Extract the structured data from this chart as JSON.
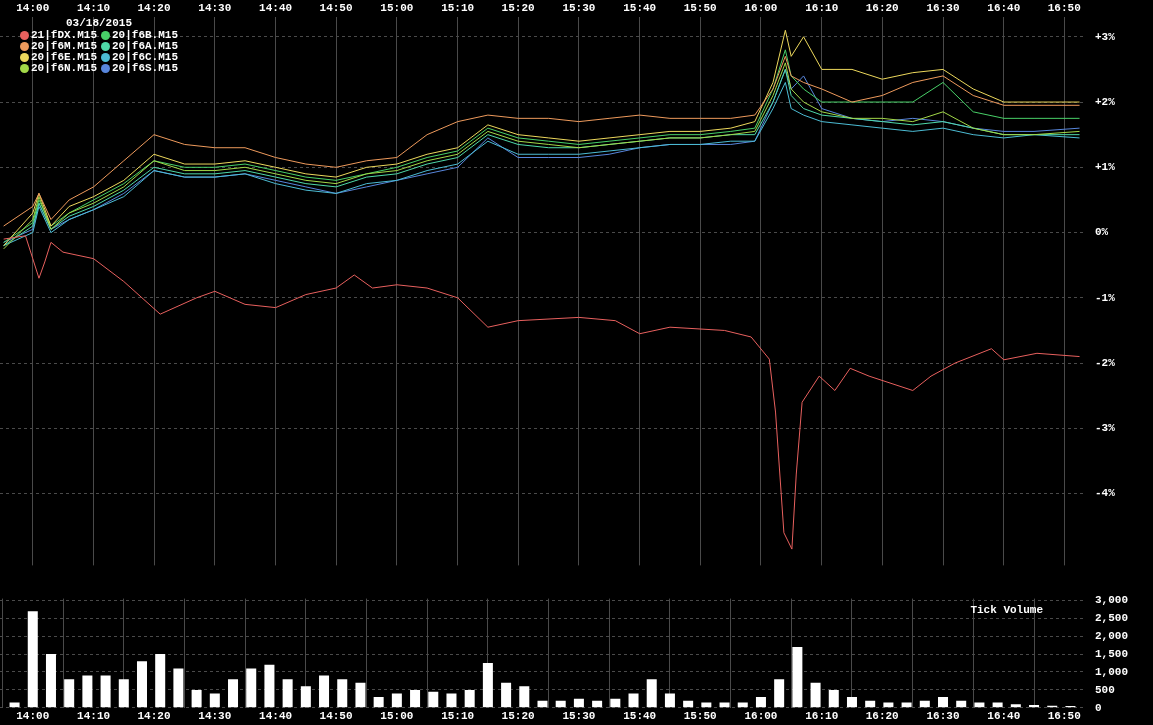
{
  "chart_data": [
    {
      "type": "line",
      "legend_title": "03/18/2015",
      "legend": "top left",
      "grid": true,
      "marker": "none",
      "xlim": [
        13.91,
        16.89
      ],
      "xticks": [
        {
          "value": 14,
          "label": "14:00"
        },
        {
          "value": 14.167,
          "label": "14:10"
        },
        {
          "value": 14.333,
          "label": "14:20"
        },
        {
          "value": 14.5,
          "label": "14:30"
        },
        {
          "value": 14.667,
          "label": "14:40"
        },
        {
          "value": 14.833,
          "label": "14:50"
        },
        {
          "value": 15,
          "label": "15:00"
        },
        {
          "value": 15.167,
          "label": "15:10"
        },
        {
          "value": 15.333,
          "label": "15:20"
        },
        {
          "value": 15.5,
          "label": "15:30"
        },
        {
          "value": 15.667,
          "label": "15:40"
        },
        {
          "value": 15.833,
          "label": "15:50"
        },
        {
          "value": 16,
          "label": "16:00"
        },
        {
          "value": 16.167,
          "label": "16:10"
        },
        {
          "value": 16.333,
          "label": "16:20"
        },
        {
          "value": 16.5,
          "label": "16:30"
        },
        {
          "value": 16.667,
          "label": "16:40"
        },
        {
          "value": 16.833,
          "label": "16:50"
        }
      ],
      "ylim": [
        -5.1,
        3.3
      ],
      "yticks": [
        {
          "value": -4,
          "label": "-4%"
        },
        {
          "value": -3,
          "label": "-3%"
        },
        {
          "value": -2,
          "label": "-2%"
        },
        {
          "value": -1,
          "label": "-1%"
        },
        {
          "value": 0,
          "label": "0%"
        },
        {
          "value": 1,
          "label": "+1%"
        },
        {
          "value": 2,
          "label": "+2%"
        },
        {
          "value": 3,
          "label": "+3%"
        }
      ],
      "x": [
        13.92,
        14.0,
        14.017,
        14.05,
        14.1,
        14.167,
        14.25,
        14.333,
        14.417,
        14.5,
        14.583,
        14.667,
        14.75,
        14.833,
        14.917,
        15.0,
        15.083,
        15.167,
        15.25,
        15.333,
        15.417,
        15.5,
        15.583,
        15.667,
        15.75,
        15.833,
        15.917,
        15.983,
        16.033,
        16.067,
        16.083,
        16.117,
        16.167,
        16.25,
        16.333,
        16.417,
        16.5,
        16.583,
        16.667,
        16.75,
        16.875
      ],
      "series": [
        {
          "name": "21|fDX.M15",
          "color": "#e8605e",
          "x": [
            13.92,
            13.98,
            14.0,
            14.017,
            14.033,
            14.05,
            14.083,
            14.167,
            14.25,
            14.35,
            14.45,
            14.5,
            14.583,
            14.667,
            14.75,
            14.833,
            14.883,
            14.933,
            15.0,
            15.083,
            15.167,
            15.25,
            15.333,
            15.5,
            15.6,
            15.667,
            15.75,
            15.9,
            15.973,
            16.023,
            16.04,
            16.063,
            16.085,
            16.097,
            16.113,
            16.16,
            16.203,
            16.245,
            16.297,
            16.417,
            16.467,
            16.533,
            16.633,
            16.667,
            16.758,
            16.875
          ],
          "values": [
            -0.1,
            -0.05,
            -0.4,
            -0.7,
            -0.45,
            -0.15,
            -0.3,
            -0.4,
            -0.75,
            -1.25,
            -1.0,
            -0.9,
            -1.1,
            -1.15,
            -0.95,
            -0.85,
            -0.65,
            -0.85,
            -0.8,
            -0.85,
            -1.0,
            -1.45,
            -1.35,
            -1.3,
            -1.35,
            -1.55,
            -1.45,
            -1.5,
            -1.6,
            -1.94,
            -2.75,
            -4.6,
            -4.85,
            -3.7,
            -2.6,
            -2.2,
            -2.42,
            -2.08,
            -2.2,
            -2.42,
            -2.2,
            -2.0,
            -1.78,
            -1.95,
            -1.85,
            -1.9
          ]
        },
        {
          "name": "20|f6M.M15",
          "color": "#ee9a5c",
          "values": [
            0.1,
            0.4,
            0.6,
            0.2,
            0.5,
            0.7,
            1.1,
            1.5,
            1.35,
            1.3,
            1.3,
            1.15,
            1.05,
            1.0,
            1.1,
            1.15,
            1.5,
            1.7,
            1.8,
            1.75,
            1.75,
            1.7,
            1.75,
            1.8,
            1.75,
            1.75,
            1.75,
            1.8,
            2.2,
            2.7,
            2.4,
            2.3,
            2.2,
            2.0,
            2.1,
            2.3,
            2.4,
            2.1,
            1.95,
            1.95,
            1.95
          ]
        },
        {
          "name": "20|f6E.M15",
          "color": "#ecd85c",
          "values": [
            -0.2,
            0.3,
            0.6,
            0.1,
            0.4,
            0.55,
            0.8,
            1.2,
            1.05,
            1.05,
            1.1,
            1.0,
            0.9,
            0.85,
            1.0,
            1.05,
            1.2,
            1.3,
            1.65,
            1.5,
            1.45,
            1.4,
            1.45,
            1.5,
            1.55,
            1.55,
            1.6,
            1.7,
            2.3,
            3.1,
            2.7,
            3.0,
            2.5,
            2.5,
            2.35,
            2.45,
            2.5,
            2.2,
            2.0,
            2.0,
            2.0
          ]
        },
        {
          "name": "20|f6N.M15",
          "color": "#a2d848",
          "values": [
            -0.25,
            0.2,
            0.55,
            0.05,
            0.3,
            0.45,
            0.7,
            1.1,
            0.95,
            0.95,
            1.0,
            0.9,
            0.8,
            0.75,
            0.9,
            0.95,
            1.1,
            1.2,
            1.55,
            1.4,
            1.35,
            1.3,
            1.35,
            1.4,
            1.45,
            1.45,
            1.5,
            1.55,
            2.1,
            2.6,
            2.2,
            2.0,
            1.85,
            1.75,
            1.75,
            1.7,
            1.85,
            1.6,
            1.5,
            1.5,
            1.55
          ]
        },
        {
          "name": "20|f6B.M15",
          "color": "#48d068",
          "values": [
            -0.15,
            0.15,
            0.5,
            0.1,
            0.3,
            0.5,
            0.75,
            1.1,
            1.0,
            1.0,
            1.05,
            0.95,
            0.85,
            0.8,
            0.9,
            1.0,
            1.15,
            1.25,
            1.6,
            1.45,
            1.4,
            1.35,
            1.4,
            1.45,
            1.5,
            1.5,
            1.55,
            1.6,
            2.2,
            2.8,
            2.4,
            2.2,
            2.0,
            2.0,
            2.0,
            2.0,
            2.3,
            1.85,
            1.75,
            1.75,
            1.75
          ]
        },
        {
          "name": "20|f6A.M15",
          "color": "#4ed8a8",
          "values": [
            -0.2,
            0.1,
            0.45,
            0.05,
            0.25,
            0.4,
            0.65,
            1.0,
            0.9,
            0.9,
            0.95,
            0.85,
            0.75,
            0.7,
            0.85,
            0.9,
            1.05,
            1.15,
            1.5,
            1.35,
            1.3,
            1.3,
            1.35,
            1.4,
            1.45,
            1.45,
            1.5,
            1.5,
            2.0,
            2.5,
            2.1,
            1.9,
            1.8,
            1.75,
            1.7,
            1.65,
            1.7,
            1.6,
            1.5,
            1.5,
            1.5
          ]
        },
        {
          "name": "20|f6C.M15",
          "color": "#4cbcd4",
          "values": [
            -0.2,
            0.0,
            0.4,
            0.0,
            0.2,
            0.35,
            0.55,
            0.95,
            0.85,
            0.85,
            0.9,
            0.75,
            0.65,
            0.6,
            0.75,
            0.8,
            0.95,
            1.05,
            1.4,
            1.2,
            1.2,
            1.2,
            1.25,
            1.3,
            1.35,
            1.35,
            1.4,
            1.4,
            1.9,
            2.3,
            1.9,
            1.8,
            1.7,
            1.65,
            1.6,
            1.55,
            1.6,
            1.5,
            1.45,
            1.5,
            1.45
          ]
        },
        {
          "name": "20|f6S.M15",
          "color": "#5886dc",
          "values": [
            -0.15,
            0.05,
            0.45,
            0.05,
            0.2,
            0.35,
            0.6,
            0.95,
            0.85,
            0.85,
            0.9,
            0.8,
            0.7,
            0.6,
            0.7,
            0.8,
            0.9,
            1.0,
            1.45,
            1.15,
            1.15,
            1.15,
            1.2,
            1.3,
            1.35,
            1.35,
            1.35,
            1.4,
            2.0,
            2.5,
            2.2,
            2.4,
            1.9,
            1.75,
            1.7,
            1.75,
            1.7,
            1.6,
            1.55,
            1.55,
            1.6
          ]
        }
      ]
    },
    {
      "type": "bar",
      "annotations": [
        "Tick Volume"
      ],
      "grid": true,
      "color": "#ffffff",
      "xlim": [
        13.91,
        16.89
      ],
      "xticks": [
        {
          "value": 14,
          "label": "14:00"
        },
        {
          "value": 14.167,
          "label": "14:10"
        },
        {
          "value": 14.333,
          "label": "14:20"
        },
        {
          "value": 14.5,
          "label": "14:30"
        },
        {
          "value": 14.667,
          "label": "14:40"
        },
        {
          "value": 14.833,
          "label": "14:50"
        },
        {
          "value": 15,
          "label": "15:00"
        },
        {
          "value": 15.167,
          "label": "15:10"
        },
        {
          "value": 15.333,
          "label": "15:20"
        },
        {
          "value": 15.5,
          "label": "15:30"
        },
        {
          "value": 15.667,
          "label": "15:40"
        },
        {
          "value": 15.833,
          "label": "15:50"
        },
        {
          "value": 16,
          "label": "16:00"
        },
        {
          "value": 16.167,
          "label": "16:10"
        },
        {
          "value": 16.333,
          "label": "16:20"
        },
        {
          "value": 16.5,
          "label": "16:30"
        },
        {
          "value": 16.667,
          "label": "16:40"
        },
        {
          "value": 16.833,
          "label": "16:50"
        }
      ],
      "ylim": [
        0,
        3050
      ],
      "yticks": [
        0,
        500,
        {
          "value": 1000,
          "label": "1,000"
        },
        {
          "value": 1500,
          "label": "1,500"
        },
        {
          "value": 2000,
          "label": "2,000"
        },
        {
          "value": 2500,
          "label": "2,500"
        },
        {
          "value": 3000,
          "label": "3,000"
        }
      ],
      "x": [
        13.95,
        14.0,
        14.05,
        14.1,
        14.15,
        14.2,
        14.25,
        14.3,
        14.35,
        14.4,
        14.45,
        14.5,
        14.55,
        14.6,
        14.65,
        14.7,
        14.75,
        14.8,
        14.85,
        14.9,
        14.95,
        15.0,
        15.05,
        15.1,
        15.15,
        15.2,
        15.25,
        15.3,
        15.35,
        15.4,
        15.45,
        15.5,
        15.55,
        15.6,
        15.65,
        15.7,
        15.75,
        15.8,
        15.85,
        15.9,
        15.95,
        16.0,
        16.05,
        16.1,
        16.15,
        16.2,
        16.25,
        16.3,
        16.35,
        16.4,
        16.45,
        16.5,
        16.55,
        16.6,
        16.65,
        16.7,
        16.75,
        16.8,
        16.85
      ],
      "values": [
        150,
        2700,
        1500,
        800,
        900,
        900,
        800,
        1300,
        1500,
        1100,
        500,
        400,
        800,
        1100,
        1200,
        800,
        600,
        900,
        800,
        700,
        300,
        400,
        500,
        450,
        400,
        500,
        1250,
        700,
        600,
        200,
        200,
        250,
        200,
        250,
        400,
        800,
        400,
        200,
        150,
        150,
        150,
        300,
        800,
        1700,
        700,
        500,
        300,
        200,
        150,
        150,
        200,
        300,
        200,
        150,
        150,
        100,
        80,
        60,
        50
      ]
    }
  ]
}
